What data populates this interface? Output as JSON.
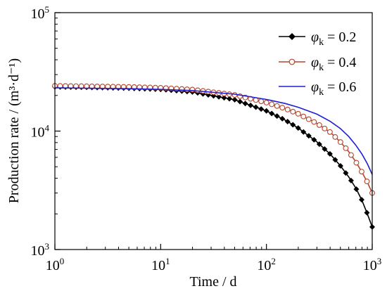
{
  "chart_data": {
    "type": "line",
    "x_scale": "log",
    "y_scale": "log",
    "xlim": [
      1,
      1000
    ],
    "ylim": [
      1000,
      100000
    ],
    "xlabel": "Time / d",
    "ylabel": "Production rate / (m³·d⁻¹)",
    "grid": false,
    "legend_position": "top-right",
    "x_ticks": [
      {
        "value": 1,
        "base": "10",
        "exp": "0"
      },
      {
        "value": 10,
        "base": "10",
        "exp": "1"
      },
      {
        "value": 100,
        "base": "10",
        "exp": "2"
      },
      {
        "value": 1000,
        "base": "10",
        "exp": "3"
      }
    ],
    "y_ticks": [
      {
        "value": 1000,
        "base": "10",
        "exp": "3"
      },
      {
        "value": 10000,
        "base": "10",
        "exp": "4"
      },
      {
        "value": 100000,
        "base": "10",
        "exp": "5"
      }
    ],
    "x": [
      1,
      2,
      5,
      10,
      20,
      50,
      100,
      150,
      200,
      300,
      400,
      500,
      600,
      700,
      800,
      900,
      1000
    ],
    "series": [
      {
        "name": "φk = 0.2",
        "legend_symbol": "φ",
        "legend_sub": "k",
        "legend_value": " = 0.2",
        "color": "#000000",
        "marker": "diamond-filled",
        "values": [
          23600,
          23400,
          23000,
          22500,
          21400,
          18400,
          14800,
          12400,
          10600,
          8100,
          6400,
          5100,
          4100,
          3300,
          2600,
          2000,
          1550
        ]
      },
      {
        "name": "φk = 0.4",
        "legend_symbol": "φ",
        "legend_sub": "k",
        "legend_value": " = 0.4",
        "color": "#b5452b",
        "marker": "circle-open",
        "values": [
          24100,
          23900,
          23600,
          23200,
          22400,
          20200,
          17400,
          15500,
          14000,
          11600,
          9800,
          8100,
          6700,
          5500,
          4500,
          3700,
          3000
        ]
      },
      {
        "name": "φk = 0.6",
        "legend_symbol": "φ",
        "legend_sub": "k",
        "legend_value": " = 0.6",
        "color": "#1f1fd6",
        "marker": "none",
        "values": [
          23200,
          23000,
          22800,
          22500,
          22000,
          20500,
          18500,
          17100,
          15900,
          13900,
          12100,
          10500,
          9000,
          7600,
          6400,
          5300,
          4300
        ]
      }
    ]
  }
}
